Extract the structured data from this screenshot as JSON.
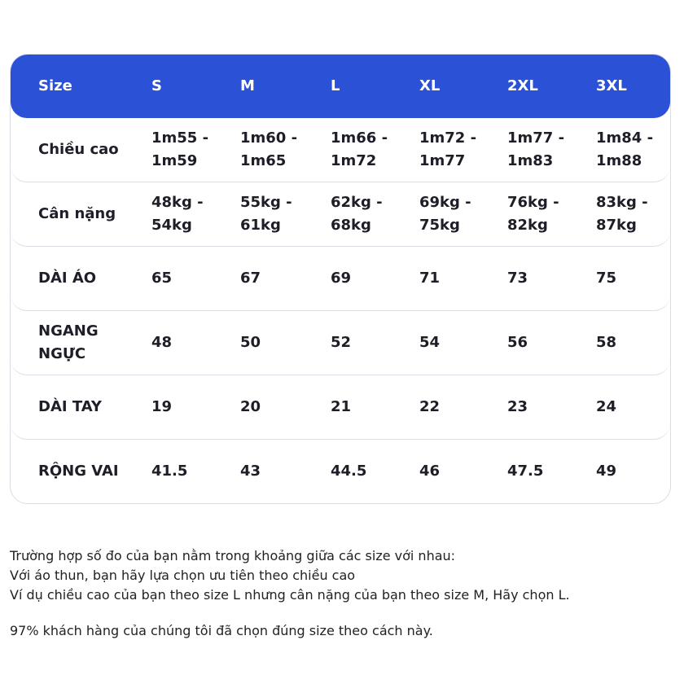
{
  "table": {
    "header": [
      "Size",
      "S",
      "M",
      "L",
      "XL",
      "2XL",
      "3XL"
    ],
    "rows": [
      [
        "Chiều cao",
        "1m55 - 1m59",
        "1m60 - 1m65",
        "1m66 - 1m72",
        "1m72 - 1m77",
        "1m77 - 1m83",
        "1m84 - 1m88"
      ],
      [
        "Cân nặng",
        "48kg - 54kg",
        "55kg - 61kg",
        "62kg - 68kg",
        "69kg - 75kg",
        "76kg - 82kg",
        "83kg - 87kg"
      ],
      [
        "DÀI ÁO",
        "65",
        "67",
        "69",
        "71",
        "73",
        "75"
      ],
      [
        "NGANG NGỰC",
        "48",
        "50",
        "52",
        "54",
        "56",
        "58"
      ],
      [
        "DÀI TAY",
        "19",
        "20",
        "21",
        "22",
        "23",
        "24"
      ],
      [
        "RỘNG VAI",
        "41.5",
        "43",
        "44.5",
        "46",
        "47.5",
        "49"
      ]
    ]
  },
  "notes": [
    "Trường hợp số đo của bạn nằm trong khoảng giữa các size với nhau:",
    "Với áo thun, bạn hãy lựa chọn ưu tiên theo chiều cao",
    "Ví dụ chiều cao của bạn theo size L nhưng cân nặng của bạn theo size M, Hãy chọn L.",
    "97% khách hàng của chúng tôi đã chọn đúng size theo cách này."
  ]
}
